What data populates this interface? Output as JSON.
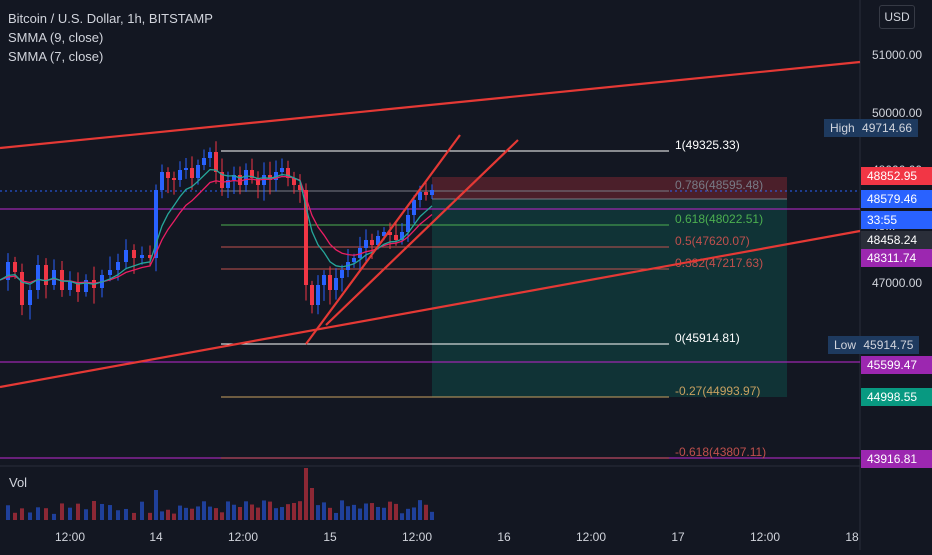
{
  "legend": {
    "title": "Bitcoin / U.S. Dollar, 1h, BITSTAMP",
    "ind1": "SMMA (9, close)",
    "ind2": "SMMA (7, close)"
  },
  "currency_button": "USD",
  "volume_label": "Vol",
  "axis": {
    "price_ticks": [
      "51000.00",
      "50000.00",
      "48000.00",
      "48...",
      "47000.00"
    ],
    "time_ticks": [
      "12:00",
      "14",
      "12:00",
      "15",
      "12:00",
      "16",
      "12:00",
      "17",
      "12:00",
      "18"
    ]
  },
  "high_tag": {
    "label": "High",
    "value": "49714.66"
  },
  "low_tag": {
    "label": "Low",
    "value": "45914.75"
  },
  "price_badges": [
    {
      "value": "48852.95",
      "color": "#f23645"
    },
    {
      "value": "48579.46",
      "color": "#2962ff"
    },
    {
      "value": "33:55",
      "color": "#2962ff"
    },
    {
      "value": "48458.24",
      "color": "#2a2e39"
    },
    {
      "value": "48311.74",
      "color": "#9c27b0"
    },
    {
      "value": "45599.47",
      "color": "#9c27b0"
    },
    {
      "value": "44998.55",
      "color": "#089981"
    },
    {
      "value": "43916.81",
      "color": "#9c27b0"
    }
  ],
  "fib_levels": [
    {
      "label": "1(49325.33)",
      "color": "#ffffff"
    },
    {
      "label": "0.786(48595.48)",
      "color": "#787b86"
    },
    {
      "label": "0.618(48022.51)",
      "color": "#4caf50"
    },
    {
      "label": "0.5(47620.07)",
      "color": "#c0504d"
    },
    {
      "label": "0.382(47217.63)",
      "color": "#c0504d"
    },
    {
      "label": "0(45914.81)",
      "color": "#ffffff"
    },
    {
      "label": "-0.27(44993.97)",
      "color": "#c8a060"
    },
    {
      "label": "-0.618(43807.11)",
      "color": "#c0504d"
    }
  ],
  "colors": {
    "background": "#131722",
    "up": "#2962ff",
    "down": "#f23645",
    "trendline": "#e53935",
    "hline_purple": "#9c27b0",
    "smma9": "#e91e63",
    "smma7": "#26a69a"
  }
}
